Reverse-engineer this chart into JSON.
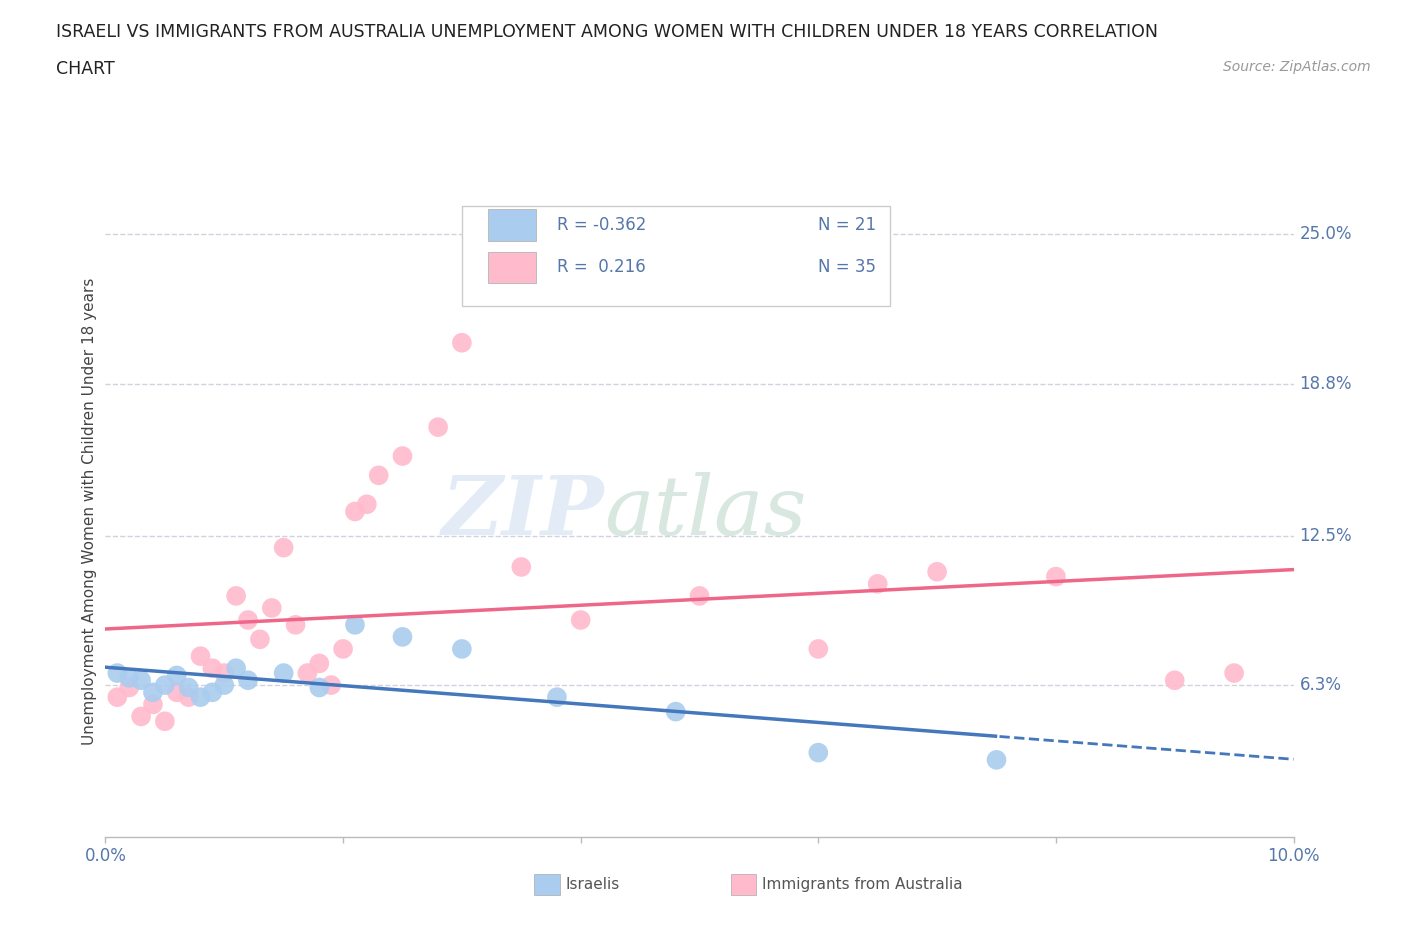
{
  "title_line1": "ISRAELI VS IMMIGRANTS FROM AUSTRALIA UNEMPLOYMENT AMONG WOMEN WITH CHILDREN UNDER 18 YEARS CORRELATION",
  "title_line2": "CHART",
  "source_text": "Source: ZipAtlas.com",
  "ylabel": "Unemployment Among Women with Children Under 18 years",
  "xlim": [
    0.0,
    0.1
  ],
  "ylim": [
    0.0,
    0.27
  ],
  "ytick_vals": [
    0.063,
    0.125,
    0.188,
    0.25
  ],
  "ytick_labels": [
    "6.3%",
    "12.5%",
    "18.8%",
    "25.0%"
  ],
  "xticks": [
    0.0,
    0.02,
    0.04,
    0.06,
    0.08,
    0.1
  ],
  "xtick_labels": [
    "0.0%",
    "",
    "",
    "",
    "",
    "10.0%"
  ],
  "israelis_x": [
    0.001,
    0.002,
    0.003,
    0.004,
    0.005,
    0.006,
    0.007,
    0.008,
    0.009,
    0.01,
    0.011,
    0.012,
    0.015,
    0.018,
    0.021,
    0.025,
    0.03,
    0.038,
    0.048,
    0.06,
    0.075
  ],
  "israelis_y": [
    0.068,
    0.066,
    0.065,
    0.06,
    0.063,
    0.067,
    0.062,
    0.058,
    0.06,
    0.063,
    0.07,
    0.065,
    0.068,
    0.062,
    0.088,
    0.083,
    0.078,
    0.058,
    0.052,
    0.035,
    0.032
  ],
  "australia_x": [
    0.001,
    0.002,
    0.003,
    0.004,
    0.005,
    0.006,
    0.007,
    0.008,
    0.009,
    0.01,
    0.011,
    0.012,
    0.013,
    0.014,
    0.015,
    0.016,
    0.017,
    0.018,
    0.019,
    0.02,
    0.021,
    0.022,
    0.023,
    0.025,
    0.028,
    0.03,
    0.035,
    0.04,
    0.05,
    0.06,
    0.065,
    0.07,
    0.08,
    0.09,
    0.095
  ],
  "australia_y": [
    0.058,
    0.062,
    0.05,
    0.055,
    0.048,
    0.06,
    0.058,
    0.075,
    0.07,
    0.068,
    0.1,
    0.09,
    0.082,
    0.095,
    0.12,
    0.088,
    0.068,
    0.072,
    0.063,
    0.078,
    0.135,
    0.138,
    0.15,
    0.158,
    0.17,
    0.205,
    0.112,
    0.09,
    0.1,
    0.078,
    0.105,
    0.11,
    0.108,
    0.065,
    0.068
  ],
  "israeli_color": "#aaccee",
  "australia_color": "#ffbbcc",
  "israeli_line_color": "#4477bb",
  "australia_line_color": "#ee6688",
  "legend_R_israeli": "R = -0.362",
  "legend_N_israeli": "N = 21",
  "legend_R_australia": "R =  0.216",
  "legend_N_australia": "N = 35",
  "watermark_zip": "ZIP",
  "watermark_atlas": "atlas",
  "background_color": "#ffffff",
  "grid_color": "#ccccdd",
  "title_color": "#222222",
  "axis_label_color": "#444444",
  "tick_label_color": "#5577aa",
  "legend_text_color": "#333333",
  "source_color": "#999999",
  "bottom_legend_label_color": "#555555"
}
